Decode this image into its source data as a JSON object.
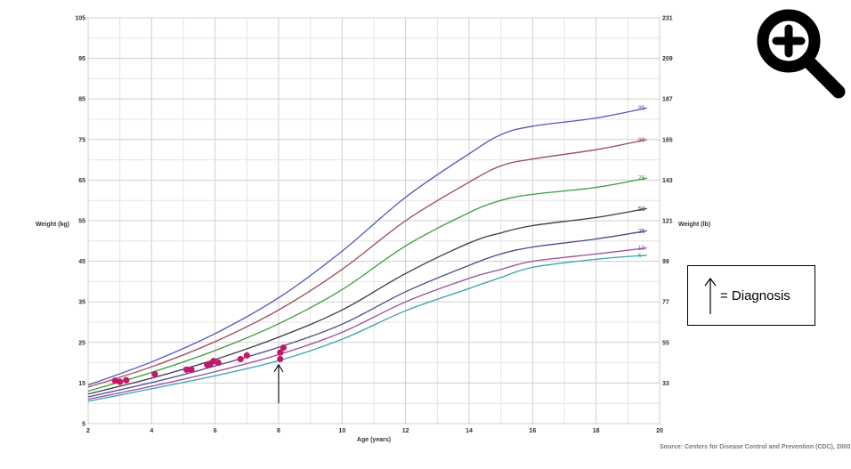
{
  "chart_data": {
    "type": "line",
    "title": "",
    "xlabel": "Age (years)",
    "ylabel_left": "Weight (kg)",
    "ylabel_right": "Weight (lb)",
    "xlim": [
      2,
      20
    ],
    "ylim": [
      5,
      105
    ],
    "x_ticks": [
      2,
      4,
      6,
      8,
      10,
      12,
      14,
      16,
      18,
      20
    ],
    "y_ticks_left": [
      5,
      15,
      25,
      35,
      45,
      55,
      65,
      75,
      85,
      95,
      105
    ],
    "y_ticks_right": [
      {
        "label": "33",
        "kg": 15
      },
      {
        "label": "55",
        "kg": 25
      },
      {
        "label": "77",
        "kg": 35
      },
      {
        "label": "99",
        "kg": 45
      },
      {
        "label": "121",
        "kg": 55
      },
      {
        "label": "143",
        "kg": 65
      },
      {
        "label": "165",
        "kg": 75
      },
      {
        "label": "187",
        "kg": 85
      },
      {
        "label": "209",
        "kg": 95
      },
      {
        "label": "231",
        "kg": 105
      }
    ],
    "grid": true,
    "x": [
      2,
      4,
      6,
      8,
      10,
      12,
      14,
      15,
      16,
      18,
      19.6
    ],
    "series": [
      {
        "name": "95",
        "color": "#5555bb",
        "values": [
          14.5,
          20.2,
          27.2,
          36.0,
          47.5,
          60.8,
          71.5,
          76.2,
          78.3,
          80.3,
          82.8
        ]
      },
      {
        "name": "90",
        "color": "#9c4a52",
        "values": [
          14.0,
          19.0,
          25.2,
          33.0,
          43.0,
          55.0,
          64.5,
          68.5,
          70.2,
          72.5,
          75.0
        ]
      },
      {
        "name": "75",
        "color": "#3c9a3c",
        "values": [
          13.0,
          17.6,
          23.0,
          29.6,
          38.0,
          48.8,
          57.0,
          60.0,
          61.5,
          63.2,
          65.5
        ]
      },
      {
        "name": "50",
        "color": "#3a3a4a",
        "values": [
          12.3,
          16.2,
          20.8,
          26.3,
          33.0,
          42.0,
          49.5,
          52.0,
          53.8,
          55.8,
          58.0
        ]
      },
      {
        "name": "25",
        "color": "#4a4a8a",
        "values": [
          11.6,
          15.1,
          19.2,
          23.8,
          29.5,
          37.5,
          44.0,
          46.8,
          48.5,
          50.5,
          52.5
        ]
      },
      {
        "name": "10",
        "color": "#9a4aa0",
        "values": [
          11.0,
          14.2,
          17.8,
          22.0,
          27.5,
          35.0,
          40.8,
          43.0,
          45.0,
          46.8,
          48.3
        ]
      },
      {
        "name": "5",
        "color": "#3aa0b0",
        "values": [
          10.5,
          13.6,
          16.8,
          20.5,
          25.8,
          32.8,
          38.3,
          41.0,
          43.5,
          45.5,
          46.5
        ]
      }
    ],
    "patient_points": {
      "color": "#c2186b",
      "x": [
        2.85,
        3.0,
        3.2,
        4.1,
        5.1,
        5.25,
        5.75,
        5.85,
        5.95,
        6.1,
        6.8,
        7.0,
        8.05,
        8.05,
        8.15
      ],
      "y": [
        15.6,
        15.3,
        15.7,
        17.2,
        18.3,
        18.3,
        19.5,
        19.7,
        20.4,
        20.0,
        20.9,
        21.8,
        20.9,
        22.5,
        23.7
      ]
    },
    "diagnosis_arrow": {
      "x": 8.0,
      "y_start": 10.0,
      "y_end": 19.5
    }
  },
  "legend": {
    "text": "= Diagnosis"
  },
  "source": "Source: Centers for Disease Control and Prevention (CDC), 2000",
  "zoom_icon": "zoom-in-icon"
}
